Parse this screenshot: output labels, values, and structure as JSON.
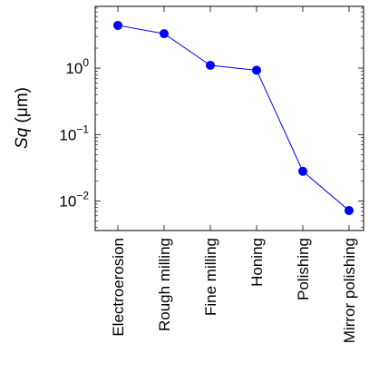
{
  "chart_data": {
    "type": "line",
    "ylabel_italic": "Sq",
    "ylabel_unit": " (μm)",
    "y_scale": "log",
    "ylim": [
      0.0036,
      8.5
    ],
    "y_ticks": [
      {
        "value": 1,
        "base": "10",
        "exp": "0"
      },
      {
        "value": 0.1,
        "base": "10",
        "exp": "−1"
      },
      {
        "value": 0.01,
        "base": "10",
        "exp": "−2"
      }
    ],
    "categories": [
      "Electroerosion",
      "Rough milling",
      "Fine milling",
      "Honing",
      "Polishing",
      "Mirror polishing"
    ],
    "series": [
      {
        "values": [
          4.4,
          3.3,
          1.1,
          0.93,
          0.028,
          0.0072
        ],
        "color": "#0000ff"
      }
    ],
    "grid": false
  }
}
